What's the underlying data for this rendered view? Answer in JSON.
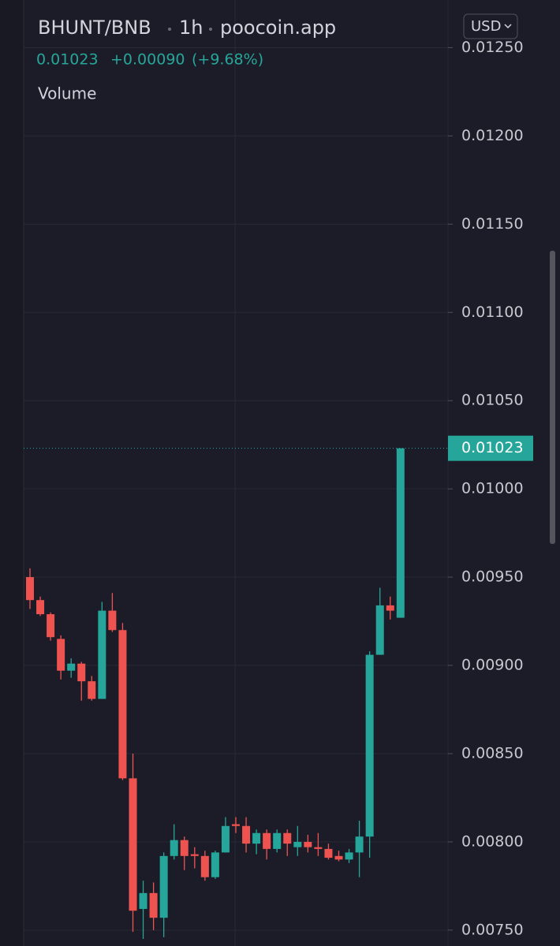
{
  "header": {
    "pair": "BHUNT/BNB",
    "interval": "1h",
    "source": "poocoin.app",
    "price": "0.01023",
    "change": "+0.00090",
    "change_pct": "(+9.68%)",
    "volume_label": "Volume",
    "currency": "USD"
  },
  "chart_data": {
    "type": "candlestick",
    "up_color": "#26a69a",
    "down_color": "#ef5350",
    "open": [
      0.0095,
      0.00937,
      0.00929,
      0.00915,
      0.00897,
      0.00901,
      0.00891,
      0.00881,
      0.00931,
      0.0092,
      0.00836,
      0.00762,
      0.00771,
      0.00757,
      0.00792,
      0.00801,
      0.00793,
      0.00792,
      0.0078,
      0.00794,
      0.0081,
      0.00809,
      0.00799,
      0.00805,
      0.00796,
      0.00805,
      0.00797,
      0.008,
      0.00797,
      0.00796,
      0.00792,
      0.0079,
      0.00794,
      0.00803,
      0.00906,
      0.00934,
      0.00927
    ],
    "high": [
      0.00955,
      0.00939,
      0.0093,
      0.00917,
      0.00904,
      0.00902,
      0.00894,
      0.00936,
      0.00941,
      0.00924,
      0.0085,
      0.00778,
      0.00777,
      0.00794,
      0.0081,
      0.00803,
      0.00797,
      0.00795,
      0.00795,
      0.00814,
      0.00814,
      0.00814,
      0.00807,
      0.00807,
      0.00807,
      0.00807,
      0.00809,
      0.00804,
      0.00805,
      0.00799,
      0.00795,
      0.00796,
      0.00812,
      0.00908,
      0.00944,
      0.00939,
      0.01023
    ],
    "low": [
      0.00932,
      0.00928,
      0.00914,
      0.00892,
      0.00893,
      0.0088,
      0.0088,
      0.00881,
      0.00919,
      0.00835,
      0.00749,
      0.00745,
      0.0075,
      0.00746,
      0.0079,
      0.00784,
      0.00785,
      0.00778,
      0.00779,
      0.00794,
      0.00805,
      0.00794,
      0.00793,
      0.0079,
      0.00794,
      0.00792,
      0.00792,
      0.00794,
      0.00792,
      0.0079,
      0.00789,
      0.00788,
      0.0078,
      0.00791,
      0.00906,
      0.00926,
      0.00927
    ],
    "close": [
      0.00937,
      0.00929,
      0.00916,
      0.00897,
      0.00901,
      0.00891,
      0.00881,
      0.00931,
      0.0092,
      0.00836,
      0.00761,
      0.00771,
      0.00757,
      0.00792,
      0.00801,
      0.00792,
      0.00792,
      0.0078,
      0.00794,
      0.00809,
      0.00809,
      0.00799,
      0.00805,
      0.00796,
      0.00805,
      0.00799,
      0.008,
      0.00797,
      0.00796,
      0.00791,
      0.0079,
      0.00794,
      0.00803,
      0.00906,
      0.00934,
      0.00931,
      0.01023
    ],
    "ylim": [
      0.00741,
      0.01277
    ],
    "yticks": [
      {
        "value": 0.0075,
        "label": "0.00750"
      },
      {
        "value": 0.008,
        "label": "0.00800"
      },
      {
        "value": 0.0085,
        "label": "0.00850"
      },
      {
        "value": 0.009,
        "label": "0.00900"
      },
      {
        "value": 0.0095,
        "label": "0.00950"
      },
      {
        "value": 0.01,
        "label": "0.01000"
      },
      {
        "value": 0.0105,
        "label": "0.01050"
      },
      {
        "value": 0.011,
        "label": "0.01100"
      },
      {
        "value": 0.0115,
        "label": "0.01150"
      },
      {
        "value": 0.012,
        "label": "0.01200"
      },
      {
        "value": 0.0125,
        "label": "0.01250"
      }
    ],
    "grid": true
  }
}
